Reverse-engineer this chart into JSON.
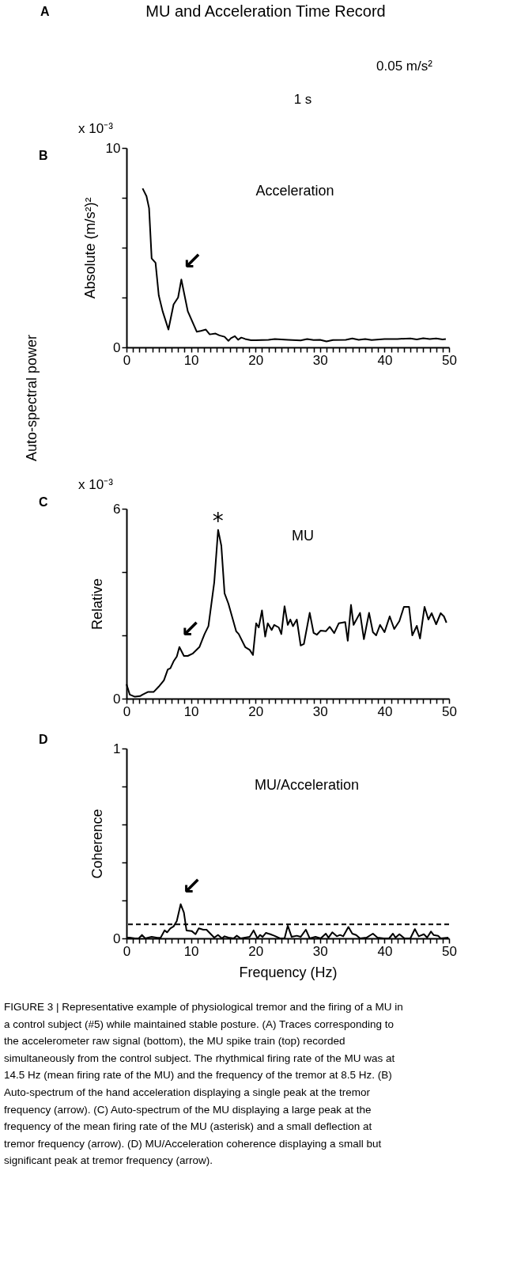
{
  "chart_data": [
    {
      "type": "other",
      "title": "MU and Acceleration Time Record",
      "annotations": [
        "A",
        "0.05 m/s²",
        "1 s"
      ]
    },
    {
      "type": "line",
      "ylabel": "Absolute (m/s²)²",
      "color": "#000000",
      "line_style": "solid",
      "x": [
        2.5,
        3.1,
        3.5,
        3.9,
        4.5,
        5.0,
        5.6,
        6.5,
        7.3,
        8.0,
        8.5,
        9.5,
        10.9,
        11.5,
        12.3,
        12.9,
        13.8,
        14.4,
        15.2,
        15.8,
        16.2,
        16.8,
        17.3,
        17.8,
        18.4,
        19.3,
        20,
        22,
        23,
        25,
        27,
        28,
        29,
        30,
        31,
        32,
        34,
        35,
        36,
        37,
        38,
        40,
        42,
        44,
        45,
        46,
        47,
        48,
        49,
        49.5
      ],
      "values": [
        7.97,
        7.58,
        6.98,
        4.46,
        4.24,
        2.61,
        1.81,
        0.89,
        2.15,
        2.5,
        3.4,
        1.81,
        0.78,
        0.82,
        0.89,
        0.65,
        0.69,
        0.6,
        0.53,
        0.33,
        0.46,
        0.56,
        0.38,
        0.49,
        0.42,
        0.36,
        0.36,
        0.38,
        0.42,
        0.38,
        0.35,
        0.42,
        0.37,
        0.38,
        0.3,
        0.37,
        0.38,
        0.45,
        0.38,
        0.42,
        0.37,
        0.42,
        0.42,
        0.45,
        0.4,
        0.46,
        0.42,
        0.45,
        0.4,
        0.42
      ],
      "xlim": [
        0,
        50
      ],
      "ylim": [
        0,
        10
      ],
      "xticks": [
        0,
        {
          "value": 1,
          "label": null
        },
        {
          "value": 2,
          "label": null
        },
        {
          "value": 3,
          "label": null
        },
        {
          "value": 4,
          "label": null
        },
        {
          "value": 5,
          "label": null
        },
        {
          "value": 6,
          "label": null
        },
        {
          "value": 7,
          "label": null
        },
        {
          "value": 8,
          "label": null
        },
        {
          "value": 9,
          "label": null
        },
        10,
        {
          "value": 11,
          "label": null
        },
        {
          "value": 12,
          "label": null
        },
        {
          "value": 13,
          "label": null
        },
        {
          "value": 14,
          "label": null
        },
        {
          "value": 15,
          "label": null
        },
        {
          "value": 16,
          "label": null
        },
        {
          "value": 17,
          "label": null
        },
        {
          "value": 18,
          "label": null
        },
        {
          "value": 19,
          "label": null
        },
        20,
        {
          "value": 21,
          "label": null
        },
        {
          "value": 22,
          "label": null
        },
        {
          "value": 23,
          "label": null
        },
        {
          "value": 24,
          "label": null
        },
        {
          "value": 25,
          "label": null
        },
        {
          "value": 26,
          "label": null
        },
        {
          "value": 27,
          "label": null
        },
        {
          "value": 28,
          "label": null
        },
        {
          "value": 29,
          "label": null
        },
        30,
        {
          "value": 31,
          "label": null
        },
        {
          "value": 32,
          "label": null
        },
        {
          "value": 33,
          "label": null
        },
        {
          "value": 34,
          "label": null
        },
        {
          "value": 35,
          "label": null
        },
        {
          "value": 36,
          "label": null
        },
        {
          "value": 37,
          "label": null
        },
        {
          "value": 38,
          "label": null
        },
        {
          "value": 39,
          "label": null
        },
        40,
        {
          "value": 41,
          "label": null
        },
        {
          "value": 42,
          "label": null
        },
        {
          "value": 43,
          "label": null
        },
        {
          "value": 44,
          "label": null
        },
        {
          "value": 45,
          "label": null
        },
        {
          "value": 46,
          "label": null
        },
        {
          "value": 47,
          "label": null
        },
        {
          "value": 48,
          "label": null
        },
        {
          "value": 49,
          "label": null
        },
        50
      ],
      "yticks": [
        0,
        {
          "value": 2.5,
          "label": null
        },
        {
          "value": 5,
          "label": null
        },
        {
          "value": 7.5,
          "label": null
        },
        10
      ],
      "annotations": [
        "B",
        "Acceleration",
        "x 10⁻³",
        "Auto-spectral power",
        {
          "text": "↙",
          "x": 8.5,
          "y": 3.4
        }
      ]
    },
    {
      "type": "line",
      "ylabel": "Relative",
      "color": "#000000",
      "line_style": "solid",
      "x": [
        0,
        0.5,
        1.3,
        2.1,
        2.5,
        3.3,
        4.2,
        5.0,
        5.8,
        6.4,
        6.8,
        7.3,
        7.8,
        8.2,
        8.9,
        9.5,
        10.3,
        11.3,
        12.1,
        12.7,
        13.6,
        14.2,
        14.7,
        15.2,
        15.8,
        17.0,
        17.4,
        18.4,
        19.1,
        19.6,
        20.1,
        20.5,
        21.0,
        21.5,
        21.9,
        22.5,
        22.9,
        23.6,
        24.0,
        24.5,
        25.0,
        25.4,
        25.8,
        26.4,
        27.0,
        27.5,
        28.4,
        29.0,
        29.5,
        30.1,
        30.9,
        31.5,
        32.2,
        32.9,
        33.9,
        34.3,
        34.8,
        35.2,
        36.2,
        36.8,
        37.6,
        38.2,
        38.7,
        39.3,
        40.0,
        40.8,
        41.5,
        42.3,
        43.0,
        43.8,
        44.3,
        45.0,
        45.5,
        46.2,
        46.8,
        47.3,
        48.0,
        48.7,
        49.2,
        49.6
      ],
      "values": [
        0.46,
        0.13,
        0.06,
        0.08,
        0.13,
        0.21,
        0.21,
        0.38,
        0.58,
        0.92,
        0.96,
        1.18,
        1.33,
        1.63,
        1.35,
        1.35,
        1.43,
        1.63,
        2.04,
        2.29,
        3.67,
        5.33,
        4.83,
        3.33,
        3.0,
        2.13,
        2.04,
        1.63,
        1.54,
        1.38,
        2.38,
        2.25,
        2.79,
        1.96,
        2.38,
        2.17,
        2.33,
        2.25,
        2.04,
        2.92,
        2.33,
        2.5,
        2.29,
        2.5,
        1.68,
        1.73,
        2.71,
        2.08,
        2.02,
        2.15,
        2.13,
        2.27,
        2.07,
        2.38,
        2.42,
        1.83,
        2.96,
        2.33,
        2.71,
        1.88,
        2.71,
        2.1,
        2.0,
        2.33,
        2.1,
        2.6,
        2.2,
        2.45,
        2.9,
        2.9,
        2.0,
        2.3,
        1.9,
        2.9,
        2.5,
        2.7,
        2.35,
        2.7,
        2.6,
        2.4
      ],
      "xlim": [
        0,
        50
      ],
      "ylim": [
        0,
        6
      ],
      "xticks": [
        0,
        {
          "value": 1,
          "label": null
        },
        {
          "value": 2,
          "label": null
        },
        {
          "value": 3,
          "label": null
        },
        {
          "value": 4,
          "label": null
        },
        {
          "value": 5,
          "label": null
        },
        {
          "value": 6,
          "label": null
        },
        {
          "value": 7,
          "label": null
        },
        {
          "value": 8,
          "label": null
        },
        {
          "value": 9,
          "label": null
        },
        10,
        {
          "value": 11,
          "label": null
        },
        {
          "value": 12,
          "label": null
        },
        {
          "value": 13,
          "label": null
        },
        {
          "value": 14,
          "label": null
        },
        {
          "value": 15,
          "label": null
        },
        {
          "value": 16,
          "label": null
        },
        {
          "value": 17,
          "label": null
        },
        {
          "value": 18,
          "label": null
        },
        {
          "value": 19,
          "label": null
        },
        20,
        {
          "value": 21,
          "label": null
        },
        {
          "value": 22,
          "label": null
        },
        {
          "value": 23,
          "label": null
        },
        {
          "value": 24,
          "label": null
        },
        {
          "value": 25,
          "label": null
        },
        {
          "value": 26,
          "label": null
        },
        {
          "value": 27,
          "label": null
        },
        {
          "value": 28,
          "label": null
        },
        {
          "value": 29,
          "label": null
        },
        30,
        {
          "value": 31,
          "label": null
        },
        {
          "value": 32,
          "label": null
        },
        {
          "value": 33,
          "label": null
        },
        {
          "value": 34,
          "label": null
        },
        {
          "value": 35,
          "label": null
        },
        {
          "value": 36,
          "label": null
        },
        {
          "value": 37,
          "label": null
        },
        {
          "value": 38,
          "label": null
        },
        {
          "value": 39,
          "label": null
        },
        40,
        {
          "value": 41,
          "label": null
        },
        {
          "value": 42,
          "label": null
        },
        {
          "value": 43,
          "label": null
        },
        {
          "value": 44,
          "label": null
        },
        {
          "value": 45,
          "label": null
        },
        {
          "value": 46,
          "label": null
        },
        {
          "value": 47,
          "label": null
        },
        {
          "value": 48,
          "label": null
        },
        {
          "value": 49,
          "label": null
        },
        50
      ],
      "yticks": [
        0,
        {
          "value": 2,
          "label": null
        },
        {
          "value": 4,
          "label": null
        },
        6
      ],
      "annotations": [
        "C",
        "MU",
        "x 10⁻³",
        {
          "text": "*",
          "x": 14.2,
          "y": 5.33
        },
        {
          "text": "↙",
          "x": 8.2,
          "y": 1.63
        }
      ]
    },
    {
      "type": "line",
      "ylabel": "Coherence",
      "xlabel": "Frequency (Hz)",
      "color": "#000000",
      "line_style": "solid",
      "x": [
        0,
        0.5,
        1.3,
        1.9,
        2.4,
        2.9,
        3.9,
        4.8,
        5.3,
        5.9,
        6.3,
        6.8,
        7.3,
        7.8,
        8.4,
        8.9,
        9.3,
        10.1,
        10.7,
        11.2,
        11.9,
        12.4,
        13.6,
        14.2,
        14.8,
        15.2,
        15.8,
        16.6,
        17.1,
        17.7,
        18.4,
        19.1,
        19.7,
        20.3,
        20.7,
        21.1,
        21.6,
        22.3,
        22.9,
        23.8,
        24.5,
        25.0,
        25.6,
        26.4,
        27.0,
        27.8,
        28.4,
        29.3,
        30.1,
        30.9,
        31.3,
        31.9,
        32.6,
        33.1,
        33.6,
        34.4,
        35.0,
        35.6,
        36.2,
        37.2,
        38.2,
        38.9,
        39.9,
        40.7,
        41.3,
        41.7,
        42.3,
        43.1,
        44.0,
        44.7,
        45.3,
        46.1,
        46.6,
        47.2,
        47.6,
        48.3,
        48.7,
        49.9
      ],
      "values": [
        0.004,
        0.004,
        0,
        0,
        0.018,
        0,
        0.008,
        0.003,
        0.004,
        0.042,
        0.032,
        0.053,
        0.063,
        0.092,
        0.18,
        0.136,
        0.042,
        0.039,
        0.022,
        0.053,
        0.046,
        0.046,
        0.004,
        0.018,
        0,
        0.011,
        0.004,
        0,
        0.014,
        0,
        0.004,
        0.008,
        0.042,
        0,
        0.018,
        0.008,
        0.029,
        0.022,
        0.014,
        0,
        0,
        0.067,
        0.008,
        0.014,
        0.008,
        0.046,
        0,
        0.008,
        0,
        0.025,
        0.004,
        0.032,
        0.011,
        0.018,
        0.011,
        0.06,
        0.025,
        0.018,
        0,
        0.004,
        0.025,
        0.004,
        0,
        0,
        0.025,
        0.004,
        0.022,
        0,
        0,
        0.049,
        0.011,
        0.022,
        0.004,
        0.036,
        0.018,
        0.014,
        0,
        0.004
      ],
      "xlim": [
        0,
        50
      ],
      "ylim": [
        0,
        1
      ],
      "xticks": [
        0,
        {
          "value": 1,
          "label": null
        },
        {
          "value": 2,
          "label": null
        },
        {
          "value": 3,
          "label": null
        },
        {
          "value": 4,
          "label": null
        },
        {
          "value": 5,
          "label": null
        },
        {
          "value": 6,
          "label": null
        },
        {
          "value": 7,
          "label": null
        },
        {
          "value": 8,
          "label": null
        },
        {
          "value": 9,
          "label": null
        },
        10,
        {
          "value": 11,
          "label": null
        },
        {
          "value": 12,
          "label": null
        },
        {
          "value": 13,
          "label": null
        },
        {
          "value": 14,
          "label": null
        },
        {
          "value": 15,
          "label": null
        },
        {
          "value": 16,
          "label": null
        },
        {
          "value": 17,
          "label": null
        },
        {
          "value": 18,
          "label": null
        },
        {
          "value": 19,
          "label": null
        },
        20,
        {
          "value": 21,
          "label": null
        },
        {
          "value": 22,
          "label": null
        },
        {
          "value": 23,
          "label": null
        },
        {
          "value": 24,
          "label": null
        },
        {
          "value": 25,
          "label": null
        },
        {
          "value": 26,
          "label": null
        },
        {
          "value": 27,
          "label": null
        },
        {
          "value": 28,
          "label": null
        },
        {
          "value": 29,
          "label": null
        },
        30,
        {
          "value": 31,
          "label": null
        },
        {
          "value": 32,
          "label": null
        },
        {
          "value": 33,
          "label": null
        },
        {
          "value": 34,
          "label": null
        },
        {
          "value": 35,
          "label": null
        },
        {
          "value": 36,
          "label": null
        },
        {
          "value": 37,
          "label": null
        },
        {
          "value": 38,
          "label": null
        },
        {
          "value": 39,
          "label": null
        },
        40,
        {
          "value": 41,
          "label": null
        },
        {
          "value": 42,
          "label": null
        },
        {
          "value": 43,
          "label": null
        },
        {
          "value": 44,
          "label": null
        },
        {
          "value": 45,
          "label": null
        },
        {
          "value": 46,
          "label": null
        },
        {
          "value": 47,
          "label": null
        },
        {
          "value": 48,
          "label": null
        },
        {
          "value": 49,
          "label": null
        },
        50
      ],
      "yticks": [
        0,
        {
          "value": 0.2,
          "label": null
        },
        {
          "value": 0.4,
          "label": null
        },
        {
          "value": 0.6,
          "label": null
        },
        {
          "value": 0.8,
          "label": null
        },
        1
      ],
      "ref_lines": [
        {
          "axis": "y",
          "value": 0.074,
          "line_style": "dashed"
        }
      ],
      "annotations": [
        "D",
        "MU/Acceleration",
        {
          "text": "↙",
          "x": 8.4,
          "y": 0.18
        },
        "FIGURE 3 | Representative example of physiological tremor and the firing of a MU in a control subject (#5) while maintained stable posture. (A) Traces corresponding to the accelerometer raw signal (bottom), the MU spike train (top) recorded simultaneously from the control subject. The rhythmical firing rate of the MU was at 14.5 Hz (mean firing rate of the MU) and the frequency of the tremor at 8.5 Hz. (B) Auto-spectrum of the hand acceleration displaying a single peak at the tremor frequency (arrow). (C) Auto-spectrum of the MU displaying a large peak at the frequency of the mean firing rate of the MU (asterisk) and a small deflection at tremor frequency (arrow). (D) MU/Acceleration coherence displaying a small but significant peak at tremor frequency (arrow)."
      ]
    }
  ]
}
